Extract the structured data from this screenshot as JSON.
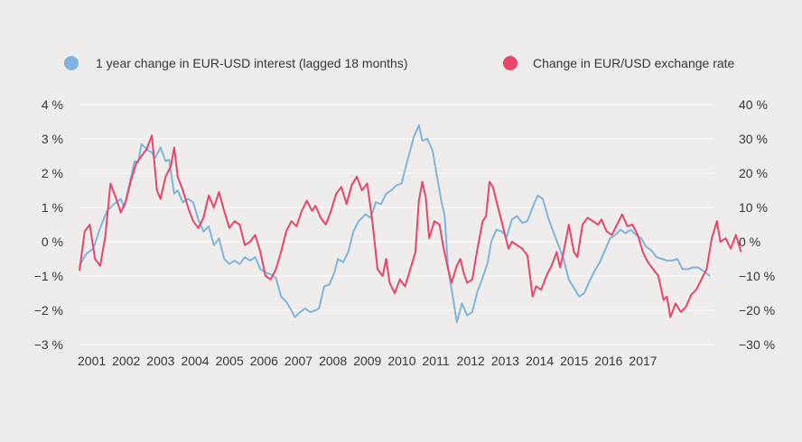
{
  "chart_data": {
    "type": "line",
    "title": "",
    "legend_position": "top",
    "grid": true,
    "x_tick_labels": [
      "2001",
      "2002",
      "2003",
      "2004",
      "2005",
      "2006",
      "2007",
      "2008",
      "2009",
      "2010",
      "2011",
      "2012",
      "2013",
      "2014",
      "2015",
      "2016",
      "2017"
    ],
    "xlim": [
      2001.0,
      2019.4
    ],
    "y_left": {
      "ylim": [
        -3,
        4
      ],
      "ticks": [
        4,
        3,
        2,
        1,
        0,
        -1,
        -2,
        -3
      ],
      "tick_labels": [
        "4 %",
        "3 %",
        "2 %",
        "1 %",
        "0 %",
        "−1 %",
        "−2 %",
        "−3 %"
      ]
    },
    "y_right": {
      "ylim": [
        -30,
        40
      ],
      "ticks": [
        40,
        30,
        20,
        10,
        0,
        -10,
        -20,
        -30
      ],
      "tick_labels": [
        "40 %",
        "30 %",
        "20 %",
        "10 %",
        "0 %",
        "−10 %",
        "−20 %",
        "−30 %"
      ]
    },
    "series": [
      {
        "name": "1 year change in EUR-USD interest (lagged 18 months)",
        "axis": "left",
        "color": "#7fb5dc",
        "points": [
          [
            2001.0,
            -0.7
          ],
          [
            2001.2,
            -0.35
          ],
          [
            2001.4,
            -0.2
          ],
          [
            2001.6,
            0.4
          ],
          [
            2001.8,
            0.9
          ],
          [
            2002.0,
            1.1
          ],
          [
            2002.2,
            1.25
          ],
          [
            2002.3,
            1.0
          ],
          [
            2002.5,
            1.9
          ],
          [
            2002.6,
            2.35
          ],
          [
            2002.7,
            2.3
          ],
          [
            2002.8,
            2.85
          ],
          [
            2002.95,
            2.7
          ],
          [
            2003.1,
            2.6
          ],
          [
            2003.2,
            2.45
          ],
          [
            2003.35,
            2.75
          ],
          [
            2003.5,
            2.35
          ],
          [
            2003.6,
            2.4
          ],
          [
            2003.75,
            1.4
          ],
          [
            2003.85,
            1.5
          ],
          [
            2004.0,
            1.15
          ],
          [
            2004.15,
            1.25
          ],
          [
            2004.3,
            1.15
          ],
          [
            2004.45,
            0.65
          ],
          [
            2004.6,
            0.3
          ],
          [
            2004.75,
            0.45
          ],
          [
            2004.9,
            -0.1
          ],
          [
            2005.05,
            0.1
          ],
          [
            2005.2,
            -0.5
          ],
          [
            2005.35,
            -0.65
          ],
          [
            2005.5,
            -0.55
          ],
          [
            2005.65,
            -0.65
          ],
          [
            2005.8,
            -0.45
          ],
          [
            2005.95,
            -0.55
          ],
          [
            2006.1,
            -0.45
          ],
          [
            2006.25,
            -0.8
          ],
          [
            2006.4,
            -0.9
          ],
          [
            2006.55,
            -0.95
          ],
          [
            2006.7,
            -1.05
          ],
          [
            2006.85,
            -1.6
          ],
          [
            2007.0,
            -1.75
          ],
          [
            2007.15,
            -2.0
          ],
          [
            2007.25,
            -2.2
          ],
          [
            2007.4,
            -2.05
          ],
          [
            2007.55,
            -1.95
          ],
          [
            2007.7,
            -2.05
          ],
          [
            2007.85,
            -2.0
          ],
          [
            2007.95,
            -1.95
          ],
          [
            2008.1,
            -1.3
          ],
          [
            2008.25,
            -1.25
          ],
          [
            2008.4,
            -0.9
          ],
          [
            2008.5,
            -0.5
          ],
          [
            2008.65,
            -0.6
          ],
          [
            2008.8,
            -0.3
          ],
          [
            2008.95,
            0.3
          ],
          [
            2009.1,
            0.6
          ],
          [
            2009.3,
            0.8
          ],
          [
            2009.45,
            0.7
          ],
          [
            2009.6,
            1.15
          ],
          [
            2009.75,
            1.1
          ],
          [
            2009.9,
            1.4
          ],
          [
            2010.05,
            1.5
          ],
          [
            2010.2,
            1.65
          ],
          [
            2010.35,
            1.7
          ],
          [
            2010.5,
            2.3
          ],
          [
            2010.7,
            3.05
          ],
          [
            2010.85,
            3.4
          ],
          [
            2010.95,
            2.95
          ],
          [
            2011.1,
            3.0
          ],
          [
            2011.25,
            2.65
          ],
          [
            2011.35,
            2.05
          ],
          [
            2011.5,
            1.2
          ],
          [
            2011.6,
            0.75
          ],
          [
            2011.7,
            -0.8
          ],
          [
            2011.85,
            -1.7
          ],
          [
            2011.95,
            -2.35
          ],
          [
            2012.1,
            -1.8
          ],
          [
            2012.25,
            -2.15
          ],
          [
            2012.4,
            -2.05
          ],
          [
            2012.55,
            -1.45
          ],
          [
            2012.7,
            -1.05
          ],
          [
            2012.85,
            -0.6
          ],
          [
            2012.95,
            0.0
          ],
          [
            2013.1,
            0.35
          ],
          [
            2013.25,
            0.3
          ],
          [
            2013.4,
            0.15
          ],
          [
            2013.55,
            0.65
          ],
          [
            2013.7,
            0.75
          ],
          [
            2013.85,
            0.55
          ],
          [
            2014.0,
            0.6
          ],
          [
            2014.15,
            1.0
          ],
          [
            2014.3,
            1.35
          ],
          [
            2014.45,
            1.25
          ],
          [
            2014.6,
            0.7
          ],
          [
            2014.75,
            0.3
          ],
          [
            2014.9,
            -0.1
          ],
          [
            2015.05,
            -0.5
          ],
          [
            2015.2,
            -1.1
          ],
          [
            2015.35,
            -1.35
          ],
          [
            2015.5,
            -1.6
          ],
          [
            2015.65,
            -1.5
          ],
          [
            2015.8,
            -1.15
          ],
          [
            2015.95,
            -0.85
          ],
          [
            2016.1,
            -0.6
          ],
          [
            2016.25,
            -0.25
          ],
          [
            2016.4,
            0.1
          ],
          [
            2016.55,
            0.2
          ],
          [
            2016.7,
            0.35
          ],
          [
            2016.85,
            0.25
          ],
          [
            2017.0,
            0.35
          ],
          [
            2017.15,
            0.2
          ],
          [
            2017.3,
            0.1
          ],
          [
            2017.45,
            -0.15
          ],
          [
            2017.6,
            -0.25
          ],
          [
            2017.75,
            -0.45
          ],
          [
            2017.9,
            -0.5
          ],
          [
            2018.05,
            -0.55
          ],
          [
            2018.2,
            -0.55
          ],
          [
            2018.35,
            -0.5
          ],
          [
            2018.5,
            -0.8
          ],
          [
            2018.65,
            -0.8
          ],
          [
            2018.8,
            -0.75
          ],
          [
            2018.95,
            -0.75
          ],
          [
            2019.1,
            -0.85
          ],
          [
            2019.3,
            -1.0
          ]
        ]
      },
      {
        "name": "Change in EUR/USD exchange rate",
        "axis": "right",
        "color": "#e8456b",
        "points": [
          [
            2001.0,
            -8.5
          ],
          [
            2001.15,
            3.0
          ],
          [
            2001.3,
            5.0
          ],
          [
            2001.45,
            -5.0
          ],
          [
            2001.6,
            -7.0
          ],
          [
            2001.75,
            1.5
          ],
          [
            2001.9,
            17.0
          ],
          [
            2002.05,
            13.0
          ],
          [
            2002.2,
            8.5
          ],
          [
            2002.35,
            12.0
          ],
          [
            2002.5,
            18.0
          ],
          [
            2002.65,
            23.0
          ],
          [
            2002.8,
            25.0
          ],
          [
            2002.95,
            27.0
          ],
          [
            2003.1,
            31.0
          ],
          [
            2003.25,
            15.0
          ],
          [
            2003.35,
            12.5
          ],
          [
            2003.5,
            19.0
          ],
          [
            2003.65,
            22.0
          ],
          [
            2003.75,
            27.5
          ],
          [
            2003.85,
            19.0
          ],
          [
            2004.0,
            15.0
          ],
          [
            2004.15,
            10.0
          ],
          [
            2004.3,
            6.0
          ],
          [
            2004.45,
            4.0
          ],
          [
            2004.6,
            7.0
          ],
          [
            2004.75,
            13.5
          ],
          [
            2004.9,
            10.0
          ],
          [
            2005.05,
            14.5
          ],
          [
            2005.2,
            9.0
          ],
          [
            2005.35,
            4.0
          ],
          [
            2005.5,
            6.0
          ],
          [
            2005.65,
            5.0
          ],
          [
            2005.8,
            -1.0
          ],
          [
            2005.95,
            0.0
          ],
          [
            2006.1,
            2.0
          ],
          [
            2006.25,
            -3.0
          ],
          [
            2006.4,
            -10.0
          ],
          [
            2006.55,
            -11.0
          ],
          [
            2006.7,
            -8.0
          ],
          [
            2006.85,
            -3.0
          ],
          [
            2007.0,
            3.0
          ],
          [
            2007.15,
            6.0
          ],
          [
            2007.3,
            4.5
          ],
          [
            2007.45,
            9.0
          ],
          [
            2007.6,
            12.0
          ],
          [
            2007.75,
            9.0
          ],
          [
            2007.85,
            10.5
          ],
          [
            2008.0,
            7.0
          ],
          [
            2008.15,
            5.0
          ],
          [
            2008.3,
            9.0
          ],
          [
            2008.45,
            14.0
          ],
          [
            2008.6,
            16.0
          ],
          [
            2008.75,
            11.0
          ],
          [
            2008.9,
            16.5
          ],
          [
            2009.05,
            19.0
          ],
          [
            2009.2,
            15.0
          ],
          [
            2009.35,
            17.0
          ],
          [
            2009.5,
            6.0
          ],
          [
            2009.65,
            -8.0
          ],
          [
            2009.8,
            -10.0
          ],
          [
            2009.9,
            -5.0
          ],
          [
            2010.0,
            -12.0
          ],
          [
            2010.15,
            -15.0
          ],
          [
            2010.3,
            -11.0
          ],
          [
            2010.45,
            -13.0
          ],
          [
            2010.6,
            -8.0
          ],
          [
            2010.75,
            -3.0
          ],
          [
            2010.85,
            12.0
          ],
          [
            2010.95,
            17.5
          ],
          [
            2011.05,
            13.0
          ],
          [
            2011.15,
            1.0
          ],
          [
            2011.3,
            6.0
          ],
          [
            2011.45,
            5.0
          ],
          [
            2011.55,
            -1.0
          ],
          [
            2011.7,
            -8.0
          ],
          [
            2011.8,
            -12.0
          ],
          [
            2011.95,
            -7.0
          ],
          [
            2012.05,
            -5.0
          ],
          [
            2012.15,
            -9.0
          ],
          [
            2012.25,
            -12.0
          ],
          [
            2012.4,
            -11.0
          ],
          [
            2012.55,
            -2.0
          ],
          [
            2012.7,
            6.0
          ],
          [
            2012.8,
            7.5
          ],
          [
            2012.9,
            17.5
          ],
          [
            2013.0,
            16.0
          ],
          [
            2013.15,
            10.0
          ],
          [
            2013.3,
            4.0
          ],
          [
            2013.45,
            -2.0
          ],
          [
            2013.55,
            0.0
          ],
          [
            2013.7,
            -1.0
          ],
          [
            2013.85,
            -2.0
          ],
          [
            2014.0,
            -4.0
          ],
          [
            2014.15,
            -16.0
          ],
          [
            2014.25,
            -13.0
          ],
          [
            2014.4,
            -14.0
          ],
          [
            2014.55,
            -10.0
          ],
          [
            2014.7,
            -7.0
          ],
          [
            2014.85,
            -3.0
          ],
          [
            2014.95,
            -7.5
          ],
          [
            2015.05,
            -3.0
          ],
          [
            2015.2,
            5.0
          ],
          [
            2015.35,
            -3.0
          ],
          [
            2015.45,
            -4.5
          ],
          [
            2015.6,
            5.0
          ],
          [
            2015.75,
            7.0
          ],
          [
            2015.9,
            6.0
          ],
          [
            2016.05,
            5.0
          ],
          [
            2016.15,
            6.5
          ],
          [
            2016.3,
            3.0
          ],
          [
            2016.45,
            2.0
          ],
          [
            2016.6,
            5.0
          ],
          [
            2016.75,
            8.0
          ],
          [
            2016.9,
            4.5
          ],
          [
            2017.05,
            5.0
          ],
          [
            2017.2,
            2.0
          ],
          [
            2017.35,
            -3.0
          ],
          [
            2017.5,
            -6.0
          ],
          [
            2017.65,
            -8.0
          ],
          [
            2017.8,
            -10.0
          ],
          [
            2017.95,
            -17.0
          ],
          [
            2018.05,
            -16.0
          ],
          [
            2018.15,
            -22.0
          ],
          [
            2018.3,
            -18.0
          ],
          [
            2018.45,
            -20.5
          ],
          [
            2018.6,
            -19.0
          ],
          [
            2018.75,
            -15.5
          ],
          [
            2018.9,
            -14.0
          ],
          [
            2019.05,
            -11.0
          ],
          [
            2019.2,
            -8.0
          ],
          [
            2019.35,
            1.0
          ],
          [
            2019.5,
            6.0
          ],
          [
            2019.6,
            0.0
          ],
          [
            2019.75,
            1.0
          ],
          [
            2019.9,
            -2.0
          ],
          [
            2020.05,
            2.0
          ],
          [
            2020.2,
            -3.0
          ]
        ]
      }
    ]
  }
}
